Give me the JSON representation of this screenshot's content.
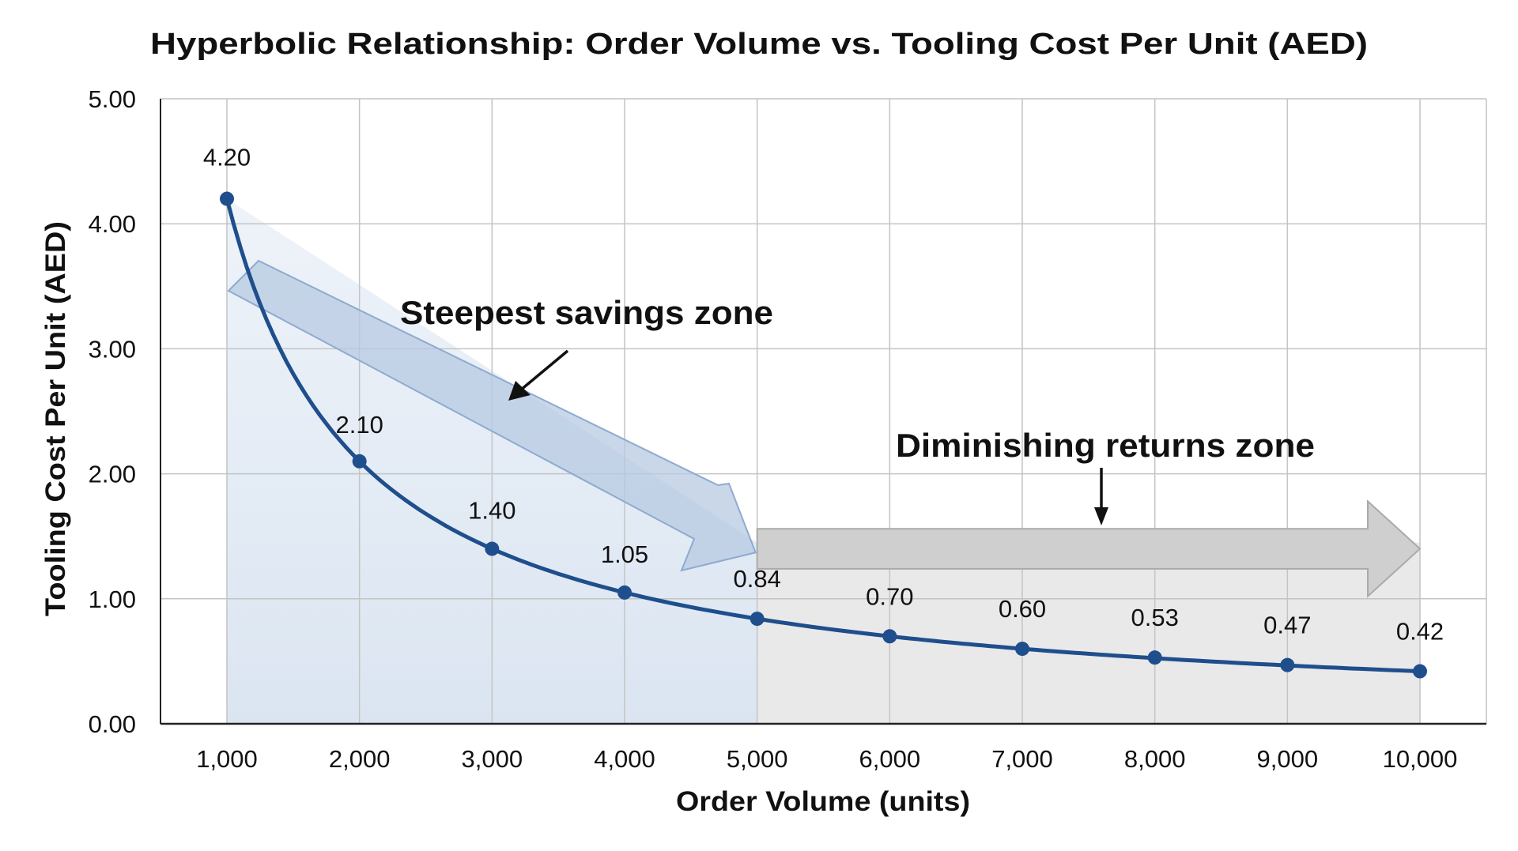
{
  "chart_data": {
    "type": "line",
    "title": "Hyperbolic Relationship: Order Volume vs. Tooling Cost Per Unit (AED)",
    "xlabel": "Order Volume (units)",
    "ylabel": "Tooling Cost Per Unit (AED)",
    "x": [
      1000,
      2000,
      3000,
      4000,
      5000,
      6000,
      7000,
      8000,
      9000,
      10000
    ],
    "x_tick_labels": [
      "1,000",
      "2,000",
      "3,000",
      "4,000",
      "5,000",
      "6,000",
      "7,000",
      "8,000",
      "9,000",
      "10,000"
    ],
    "values": [
      4.2,
      2.1,
      1.4,
      1.05,
      0.84,
      0.7,
      0.6,
      0.53,
      0.47,
      0.42
    ],
    "data_labels": [
      "4.20",
      "2.10",
      "1.40",
      "1.05",
      "0.84",
      "0.70",
      "0.60",
      "0.53",
      "0.47",
      "0.42"
    ],
    "y_tick_labels": [
      "0.00",
      "1.00",
      "2.00",
      "3.00",
      "4.00",
      "5.00"
    ],
    "ylim": [
      0,
      5
    ],
    "xlim": [
      500,
      10500
    ],
    "grid": true,
    "annotations": [
      {
        "text": "Steepest savings zone",
        "x_range": [
          1000,
          5000
        ],
        "fill": "#dbe5f1"
      },
      {
        "text": "Diminishing returns zone",
        "x_range": [
          5000,
          10000
        ],
        "fill": "#e9e9e9"
      }
    ],
    "colors": {
      "line": "#1f4e8c",
      "blue_zone": "#dbe5f1",
      "blue_arrow": "#b7c9e2",
      "gray_zone": "#e9e9e9",
      "gray_arrow": "#cfcfcf",
      "grid": "#c4c4c4"
    }
  }
}
